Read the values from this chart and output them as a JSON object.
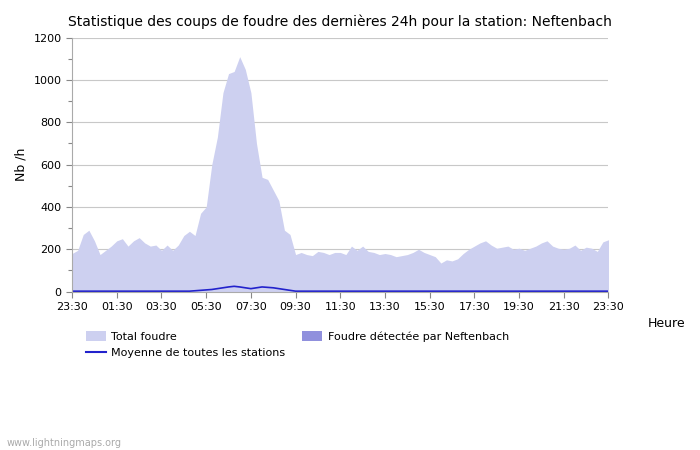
{
  "title": "Statistique des coups de foudre des dernières 24h pour la station: Neftenbach",
  "xlabel": "Heure",
  "ylabel": "Nb /h",
  "ylim": [
    0,
    1200
  ],
  "yticks": [
    0,
    200,
    400,
    600,
    800,
    1000,
    1200
  ],
  "xtick_labels": [
    "23:30",
    "01:30",
    "03:30",
    "05:30",
    "07:30",
    "09:30",
    "11:30",
    "13:30",
    "15:30",
    "17:30",
    "19:30",
    "21:30",
    "23:30"
  ],
  "background_color": "#ffffff",
  "watermark": "www.lightningmaps.org",
  "total_foudre_color": "#cdd0f0",
  "neftenbach_color": "#9090dd",
  "moyenne_color": "#2222cc",
  "total_foudre": [
    180,
    195,
    270,
    290,
    240,
    175,
    195,
    215,
    240,
    250,
    215,
    240,
    255,
    230,
    215,
    220,
    195,
    220,
    195,
    220,
    265,
    285,
    265,
    370,
    400,
    600,
    730,
    940,
    1030,
    1040,
    1110,
    1050,
    940,
    700,
    540,
    530,
    480,
    430,
    290,
    270,
    175,
    185,
    175,
    170,
    190,
    185,
    175,
    185,
    185,
    175,
    215,
    195,
    215,
    190,
    185,
    175,
    180,
    175,
    165,
    170,
    175,
    185,
    200,
    185,
    175,
    165,
    135,
    150,
    145,
    155,
    180,
    200,
    215,
    230,
    240,
    220,
    205,
    210,
    215,
    200,
    205,
    195,
    205,
    215,
    230,
    240,
    215,
    205,
    200,
    205,
    220,
    195,
    210,
    205,
    190,
    235,
    245
  ],
  "neftenbach_data": [
    0,
    0,
    0,
    0,
    0,
    0,
    0,
    0,
    0,
    0,
    0,
    0,
    0,
    0,
    0,
    0,
    0,
    0,
    0,
    0,
    0,
    0,
    0,
    0,
    0,
    0,
    0,
    0,
    0,
    0,
    0,
    0,
    0,
    0,
    0,
    0,
    0,
    0,
    0,
    0,
    0,
    0,
    0,
    0,
    0,
    0,
    0,
    0,
    0,
    0,
    0,
    0,
    0,
    0,
    0,
    0,
    0,
    0,
    0,
    0,
    0,
    0,
    0,
    0,
    0,
    0,
    0,
    0,
    0,
    0,
    0,
    0,
    0,
    0,
    0,
    0,
    0,
    0,
    0,
    0,
    0,
    0,
    0,
    0,
    0,
    0,
    0,
    0,
    0,
    0,
    0,
    0,
    0,
    0,
    0,
    0,
    0
  ],
  "moyenne_data": [
    2,
    2,
    2,
    2,
    2,
    2,
    2,
    2,
    2,
    2,
    2,
    2,
    2,
    2,
    2,
    2,
    2,
    2,
    2,
    2,
    2,
    2,
    4,
    6,
    8,
    10,
    14,
    18,
    22,
    25,
    22,
    18,
    14,
    18,
    22,
    20,
    18,
    14,
    10,
    6,
    2,
    2,
    2,
    2,
    2,
    2,
    2,
    2,
    2,
    2,
    2,
    2,
    2,
    2,
    2,
    2,
    2,
    2,
    2,
    2,
    2,
    2,
    2,
    2,
    2,
    2,
    2,
    2,
    2,
    2,
    2,
    2,
    2,
    2,
    2,
    2,
    2,
    2,
    2,
    2,
    2,
    2,
    2,
    2,
    2,
    2,
    2,
    2,
    2,
    2,
    2,
    2,
    2,
    2,
    2,
    2,
    2
  ]
}
